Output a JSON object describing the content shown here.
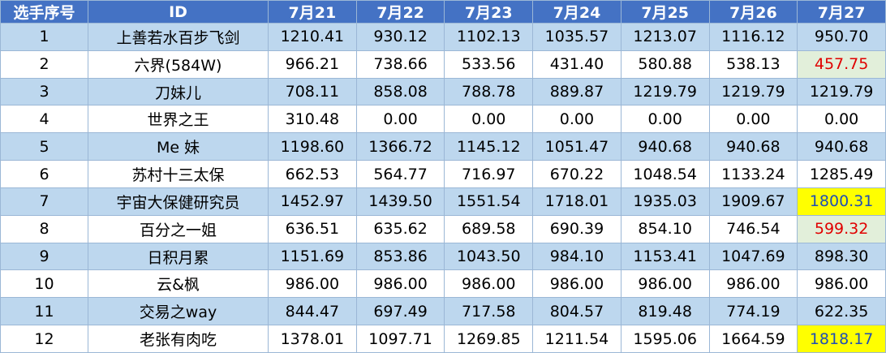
{
  "table": {
    "header": [
      "选手序号",
      "ID",
      "7月21",
      "7月22",
      "7月23",
      "7月24",
      "7月25",
      "7月26",
      "7月27"
    ],
    "rows": [
      [
        "1",
        "上善若水百步飞剑",
        "1210.41",
        "930.12",
        "1102.13",
        "1035.57",
        "1213.07",
        "1116.12",
        "950.70"
      ],
      [
        "2",
        "六界(584W)",
        "966.21",
        "738.66",
        "533.56",
        "431.40",
        "580.88",
        "538.13",
        "457.75"
      ],
      [
        "3",
        "刀妹儿",
        "708.11",
        "858.08",
        "788.78",
        "889.87",
        "1219.79",
        "1219.79",
        "1219.79"
      ],
      [
        "4",
        "世界之王",
        "310.48",
        "0.00",
        "0.00",
        "0.00",
        "0.00",
        "0.00",
        "0.00"
      ],
      [
        "5",
        "Me 妹",
        "1198.60",
        "1366.72",
        "1145.12",
        "1051.47",
        "940.68",
        "940.68",
        "940.68"
      ],
      [
        "6",
        "苏村十三太保",
        "662.53",
        "564.77",
        "716.97",
        "670.22",
        "1048.54",
        "1133.24",
        "1285.49"
      ],
      [
        "7",
        "宇宙大保健研究员",
        "1452.97",
        "1439.50",
        "1551.54",
        "1718.01",
        "1935.03",
        "1909.67",
        "1800.31"
      ],
      [
        "8",
        "百分之一姐",
        "636.51",
        "635.62",
        "689.58",
        "690.39",
        "854.10",
        "746.54",
        "599.32"
      ],
      [
        "9",
        "日积月累",
        "1151.69",
        "853.86",
        "1043.50",
        "984.10",
        "1153.41",
        "1047.69",
        "898.30"
      ],
      [
        "10",
        "云&枫",
        "986.00",
        "986.00",
        "986.00",
        "986.00",
        "986.00",
        "986.00",
        "986.00"
      ],
      [
        "11",
        "交易之way",
        "844.47",
        "697.49",
        "717.58",
        "804.57",
        "819.48",
        "774.19",
        "622.35"
      ],
      [
        "12",
        "老张有肉吃",
        "1378.01",
        "1097.71",
        "1269.85",
        "1211.54",
        "1595.06",
        "1664.59",
        "1818.17"
      ]
    ]
  }
}
